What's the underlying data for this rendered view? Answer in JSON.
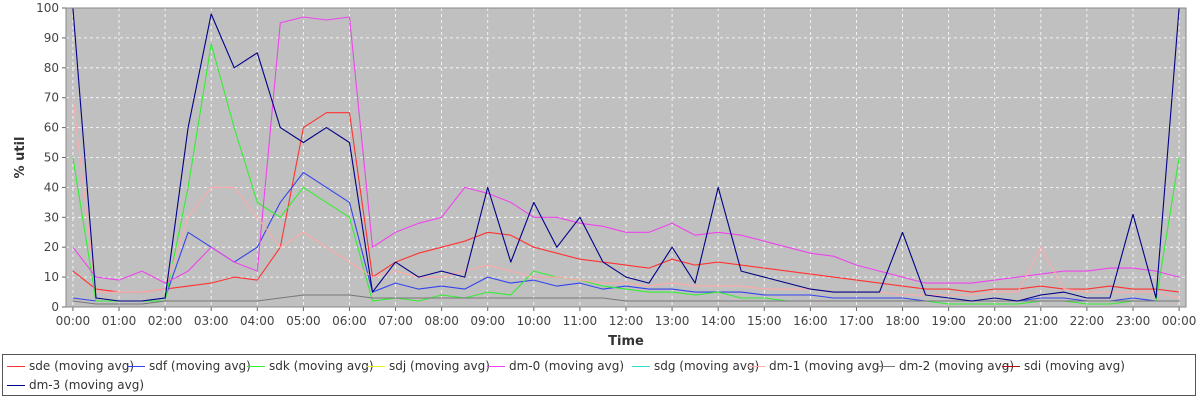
{
  "chart_data": {
    "type": "line",
    "ylabel": "% util",
    "xlabel": "Time",
    "ylim": [
      0,
      100
    ],
    "yticks": [
      0,
      10,
      20,
      30,
      40,
      50,
      60,
      70,
      80,
      90,
      100
    ],
    "xticks": [
      "00:00",
      "01:00",
      "02:00",
      "03:00",
      "04:00",
      "05:00",
      "06:00",
      "07:00",
      "08:00",
      "09:00",
      "10:00",
      "11:00",
      "12:00",
      "13:00",
      "14:00",
      "15:00",
      "16:00",
      "17:00",
      "18:00",
      "19:00",
      "20:00",
      "21:00",
      "22:00",
      "23:00",
      "00:00"
    ],
    "xlim_hours": [
      -0.15,
      24.15
    ],
    "grid": true,
    "background": "#c0c0c0",
    "legend_position": "bottom",
    "x_hours": [
      0,
      0.5,
      1,
      1.5,
      2,
      2.5,
      3,
      3.5,
      4,
      4.5,
      5,
      5.5,
      6,
      6.5,
      7,
      7.5,
      8,
      8.5,
      9,
      9.5,
      10,
      10.5,
      11,
      11.5,
      12,
      12.5,
      13,
      13.5,
      14,
      14.5,
      15,
      15.5,
      16,
      16.5,
      17,
      17.5,
      18,
      18.5,
      19,
      19.5,
      20,
      20.5,
      21,
      21.5,
      22,
      22.5,
      23,
      23.5,
      24
    ],
    "series": [
      {
        "name": "sde (moving avg)",
        "color": "#ff3333",
        "values": [
          12,
          6,
          5,
          5,
          6,
          7,
          8,
          10,
          9,
          20,
          60,
          65,
          65,
          10,
          15,
          18,
          20,
          22,
          25,
          24,
          20,
          18,
          16,
          15,
          14,
          13,
          16,
          14,
          15,
          14,
          13,
          12,
          11,
          10,
          9,
          8,
          7,
          6,
          6,
          5,
          6,
          6,
          7,
          6,
          6,
          7,
          6,
          6,
          5
        ]
      },
      {
        "name": "sdf (moving avg)",
        "color": "#3344ee",
        "values": [
          3,
          2,
          2,
          2,
          3,
          25,
          20,
          15,
          20,
          35,
          45,
          40,
          35,
          5,
          8,
          6,
          7,
          6,
          10,
          8,
          9,
          7,
          8,
          6,
          7,
          6,
          6,
          5,
          5,
          5,
          4,
          4,
          4,
          3,
          3,
          3,
          3,
          2,
          2,
          2,
          2,
          2,
          3,
          3,
          2,
          2,
          3,
          2,
          2
        ]
      },
      {
        "name": "sdk (moving avg)",
        "color": "#33ee33",
        "values": [
          50,
          2,
          2,
          2,
          2,
          40,
          88,
          60,
          35,
          30,
          40,
          35,
          30,
          2,
          3,
          2,
          4,
          3,
          5,
          4,
          12,
          10,
          9,
          7,
          6,
          5,
          5,
          4,
          5,
          3,
          3,
          2,
          2,
          2,
          2,
          2,
          2,
          2,
          1,
          1,
          1,
          1,
          2,
          2,
          1,
          1,
          2,
          2,
          50
        ]
      },
      {
        "name": "sdj (moving avg)",
        "color": "#eeee22",
        "values": [
          0,
          0,
          0,
          0,
          0,
          0,
          0,
          0,
          0,
          0,
          0,
          0,
          0,
          0,
          0,
          0,
          0,
          0,
          0,
          0,
          0,
          0,
          0,
          0,
          0,
          0,
          0,
          0,
          0,
          0,
          0,
          0,
          0,
          0,
          0,
          0,
          0,
          0,
          0,
          0,
          0,
          0,
          0,
          0,
          0,
          0,
          0,
          0,
          0
        ]
      },
      {
        "name": "dm-0 (moving avg)",
        "color": "#ee44ee",
        "values": [
          20,
          10,
          9,
          12,
          8,
          12,
          20,
          15,
          12,
          95,
          97,
          96,
          97,
          20,
          25,
          28,
          30,
          40,
          38,
          35,
          30,
          30,
          28,
          27,
          25,
          25,
          28,
          24,
          25,
          24,
          22,
          20,
          18,
          17,
          14,
          12,
          10,
          8,
          8,
          8,
          9,
          10,
          11,
          12,
          12,
          13,
          13,
          12,
          10
        ]
      },
      {
        "name": "sdg (moving avg)",
        "color": "#33dddd",
        "values": [
          0,
          0,
          0,
          0,
          0,
          0,
          0,
          0,
          0,
          0,
          0,
          0,
          0,
          0,
          0,
          0,
          0,
          0,
          0,
          0,
          0,
          0,
          0,
          0,
          0,
          0,
          0,
          0,
          0,
          0,
          0,
          0,
          0,
          0,
          0,
          0,
          0,
          0,
          0,
          0,
          0,
          0,
          0,
          0,
          0,
          0,
          0,
          0,
          0
        ]
      },
      {
        "name": "dm-1 (moving avg)",
        "color": "#ffaaaa",
        "values": [
          70,
          5,
          5,
          5,
          6,
          30,
          40,
          40,
          30,
          20,
          25,
          20,
          15,
          10,
          12,
          10,
          10,
          12,
          14,
          12,
          10,
          10,
          9,
          8,
          8,
          7,
          8,
          7,
          7,
          7,
          6,
          6,
          6,
          5,
          5,
          5,
          4,
          4,
          4,
          4,
          5,
          5,
          20,
          6,
          5,
          5,
          5,
          5,
          3
        ]
      },
      {
        "name": "dm-2 (moving avg)",
        "color": "#777777",
        "values": [
          2,
          1,
          1,
          1,
          2,
          2,
          2,
          2,
          2,
          3,
          4,
          4,
          4,
          3,
          3,
          3,
          3,
          3,
          3,
          3,
          3,
          3,
          3,
          3,
          2,
          2,
          2,
          2,
          2,
          2,
          2,
          2,
          2,
          2,
          2,
          2,
          2,
          2,
          2,
          2,
          2,
          2,
          2,
          2,
          2,
          2,
          2,
          2,
          2
        ]
      },
      {
        "name": "sdi (moving avg)",
        "color": "#aa1111",
        "values": [
          0,
          0,
          0,
          0,
          0,
          0,
          0,
          0,
          0,
          0,
          0,
          0,
          0,
          0,
          0,
          0,
          0,
          0,
          0,
          0,
          0,
          0,
          0,
          0,
          0,
          0,
          0,
          0,
          0,
          0,
          0,
          0,
          0,
          0,
          0,
          0,
          0,
          0,
          0,
          0,
          0,
          0,
          0,
          0,
          0,
          0,
          0,
          0,
          0
        ]
      },
      {
        "name": "dm-3 (moving avg)",
        "color": "#000088",
        "values": [
          100,
          3,
          2,
          2,
          3,
          60,
          98,
          80,
          85,
          60,
          55,
          60,
          55,
          5,
          15,
          10,
          12,
          10,
          40,
          15,
          35,
          20,
          30,
          15,
          10,
          8,
          20,
          8,
          40,
          12,
          10,
          8,
          6,
          5,
          5,
          5,
          25,
          4,
          3,
          2,
          3,
          2,
          4,
          5,
          3,
          3,
          31,
          3,
          100
        ]
      }
    ]
  }
}
